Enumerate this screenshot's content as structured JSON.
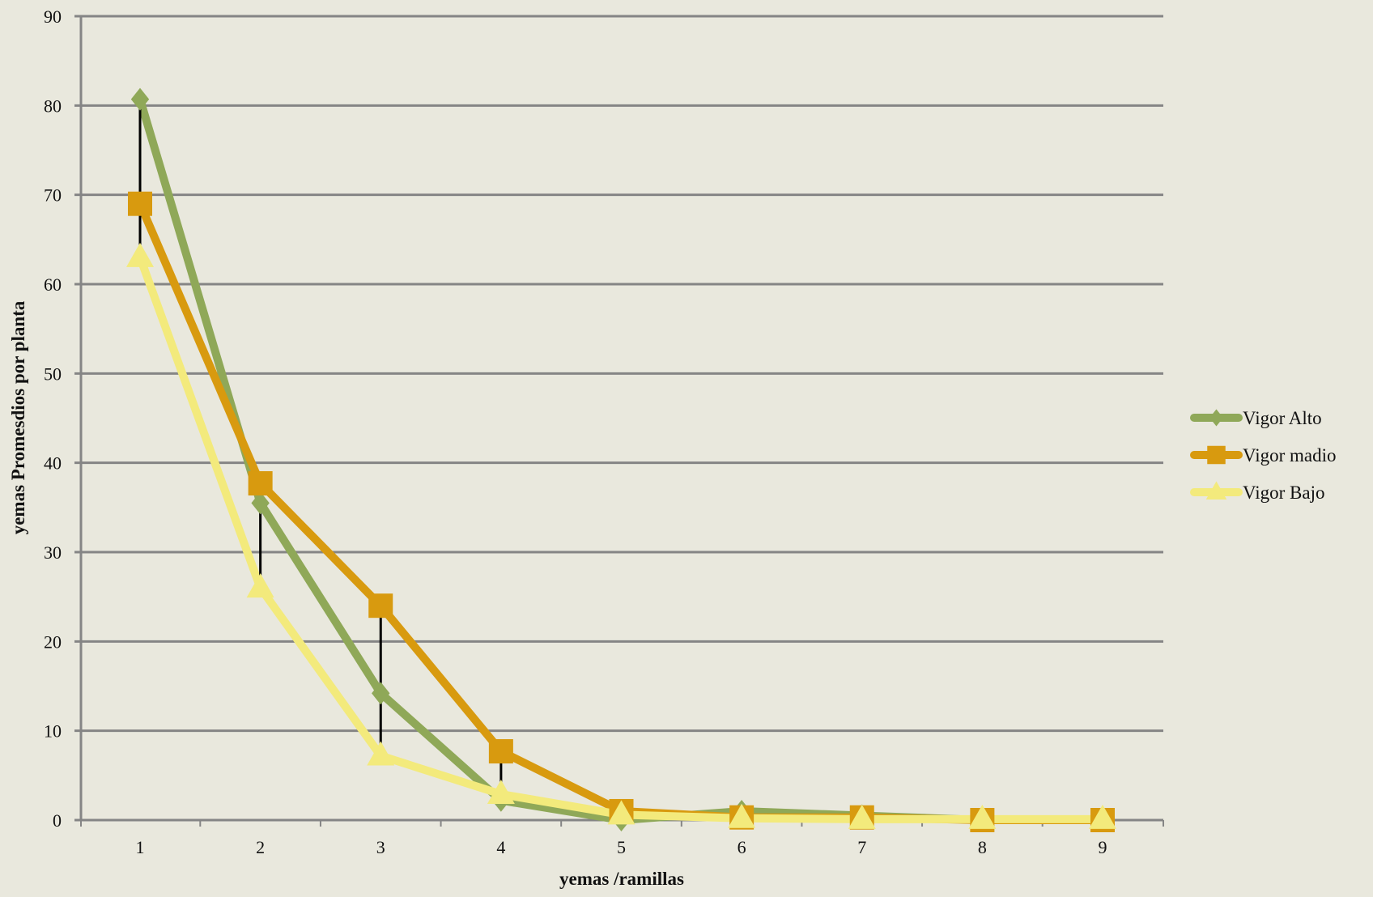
{
  "chart_data": {
    "type": "line",
    "title": "",
    "xlabel": "yemas /ramillas",
    "ylabel": "yemas Promesdios por planta",
    "categories": [
      "1",
      "2",
      "3",
      "4",
      "5",
      "6",
      "7",
      "8",
      "9"
    ],
    "ylim": [
      0,
      90
    ],
    "yticks": [
      "0",
      "10",
      "20",
      "30",
      "40",
      "50",
      "60",
      "70",
      "80",
      "90"
    ],
    "grid": true,
    "legend_position": "right",
    "series": [
      {
        "name": "Vigor Alto",
        "color": "#8fa858",
        "marker": "diamond",
        "values": [
          80.7,
          35.5,
          14.2,
          2.2,
          0.0,
          1.0,
          0.5,
          0.0,
          0.0
        ]
      },
      {
        "name": "Vigor madio",
        "color": "#d89a0f",
        "marker": "square",
        "values": [
          69.0,
          37.7,
          24.0,
          7.7,
          1.0,
          0.3,
          0.3,
          0.0,
          0.0
        ]
      },
      {
        "name": "Vigor Bajo",
        "color": "#f3ea7c",
        "marker": "triangle",
        "values": [
          63.0,
          26.0,
          7.2,
          2.9,
          0.6,
          0.2,
          0.1,
          0.1,
          0.1
        ]
      }
    ],
    "error_bars": [
      {
        "x": "1",
        "low": 63.0,
        "high": 80.7
      },
      {
        "x": "2",
        "low": 26.0,
        "high": 37.7
      },
      {
        "x": "3",
        "low": 7.2,
        "high": 24.0
      },
      {
        "x": "4",
        "low": 2.2,
        "high": 7.7
      },
      {
        "x": "5",
        "low": 0.0,
        "high": 1.0
      },
      {
        "x": "6",
        "low": 0.2,
        "high": 1.0
      },
      {
        "x": "7",
        "low": 0.1,
        "high": 0.5
      }
    ]
  }
}
